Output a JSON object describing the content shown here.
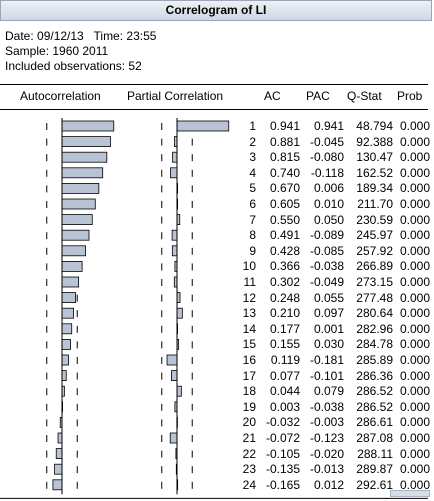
{
  "window": {
    "title": "Correlogram of LI"
  },
  "info": {
    "line1": "Date: 09/12/13   Time: 23:55",
    "line2": "Sample: 1960 2011",
    "line3": "Included observations: 52"
  },
  "columns": {
    "autocorrelation": "Autocorrelation",
    "partial": "Partial Correlation",
    "ac": "AC",
    "pac": "PAC",
    "qstat": "Q-Stat",
    "prob": "Prob"
  },
  "rows": [
    {
      "lag": "1",
      "ac": "0.941",
      "pac": "0.941",
      "q": "48.794",
      "p": "0.000"
    },
    {
      "lag": "2",
      "ac": "0.881",
      "pac": "-0.045",
      "q": "92.388",
      "p": "0.000"
    },
    {
      "lag": "3",
      "ac": "0.815",
      "pac": "-0.080",
      "q": "130.47",
      "p": "0.000"
    },
    {
      "lag": "4",
      "ac": "0.740",
      "pac": "-0.118",
      "q": "162.52",
      "p": "0.000"
    },
    {
      "lag": "5",
      "ac": "0.670",
      "pac": "0.006",
      "q": "189.34",
      "p": "0.000"
    },
    {
      "lag": "6",
      "ac": "0.605",
      "pac": "0.010",
      "q": "211.70",
      "p": "0.000"
    },
    {
      "lag": "7",
      "ac": "0.550",
      "pac": "0.050",
      "q": "230.59",
      "p": "0.000"
    },
    {
      "lag": "8",
      "ac": "0.491",
      "pac": "-0.089",
      "q": "245.97",
      "p": "0.000"
    },
    {
      "lag": "9",
      "ac": "0.428",
      "pac": "-0.085",
      "q": "257.92",
      "p": "0.000"
    },
    {
      "lag": "10",
      "ac": "0.366",
      "pac": "-0.038",
      "q": "266.89",
      "p": "0.000"
    },
    {
      "lag": "11",
      "ac": "0.302",
      "pac": "-0.049",
      "q": "273.15",
      "p": "0.000"
    },
    {
      "lag": "12",
      "ac": "0.248",
      "pac": "0.055",
      "q": "277.48",
      "p": "0.000"
    },
    {
      "lag": "13",
      "ac": "0.210",
      "pac": "0.097",
      "q": "280.64",
      "p": "0.000"
    },
    {
      "lag": "14",
      "ac": "0.177",
      "pac": "0.001",
      "q": "282.96",
      "p": "0.000"
    },
    {
      "lag": "15",
      "ac": "0.155",
      "pac": "0.030",
      "q": "284.78",
      "p": "0.000"
    },
    {
      "lag": "16",
      "ac": "0.119",
      "pac": "-0.181",
      "q": "285.89",
      "p": "0.000"
    },
    {
      "lag": "17",
      "ac": "0.077",
      "pac": "-0.101",
      "q": "286.36",
      "p": "0.000"
    },
    {
      "lag": "18",
      "ac": "0.044",
      "pac": "0.079",
      "q": "286.52",
      "p": "0.000"
    },
    {
      "lag": "19",
      "ac": "0.003",
      "pac": "-0.038",
      "q": "286.52",
      "p": "0.000"
    },
    {
      "lag": "20",
      "ac": "-0.032",
      "pac": "-0.003",
      "q": "286.61",
      "p": "0.000"
    },
    {
      "lag": "21",
      "ac": "-0.072",
      "pac": "-0.123",
      "q": "287.08",
      "p": "0.000"
    },
    {
      "lag": "22",
      "ac": "-0.105",
      "pac": "-0.020",
      "q": "288.11",
      "p": "0.000"
    },
    {
      "lag": "23",
      "ac": "-0.135",
      "pac": "-0.013",
      "q": "289.87",
      "p": "0.000"
    },
    {
      "lag": "24",
      "ac": "-0.165",
      "pac": "0.012",
      "q": "292.61",
      "p": "0.000"
    }
  ],
  "colors": {
    "bar_fill": "#b9c3d6",
    "bar_stroke": "#000000",
    "title_bg": "#d9dfe9"
  }
}
